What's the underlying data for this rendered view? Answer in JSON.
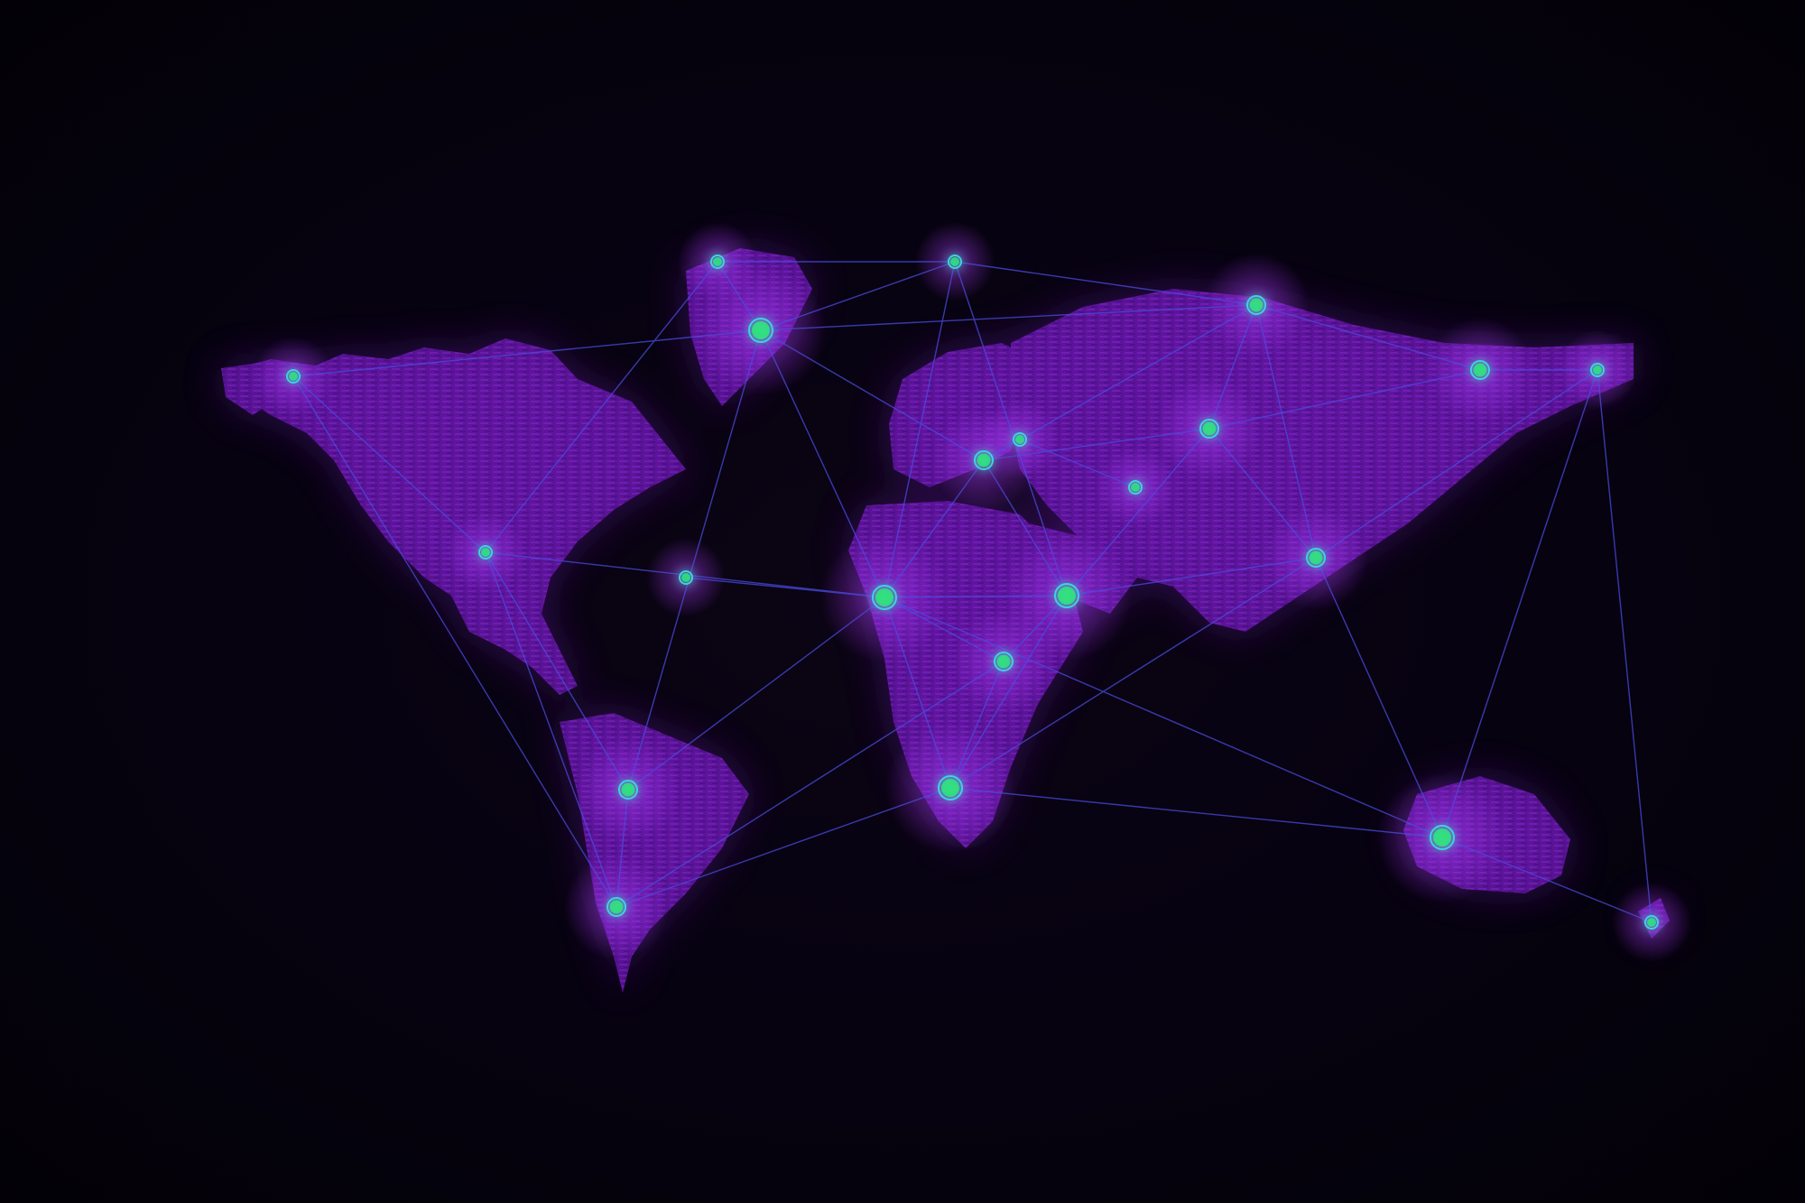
{
  "image": {
    "subject": "world-map-network",
    "colors": {
      "background": "#040108",
      "land": "#7a1fc4",
      "land_glow": "#9b2cf0",
      "link": "#4a4ce0",
      "node_core": "#2ee87a",
      "node_ring": "#3fd0e0"
    }
  },
  "nodes": [
    {
      "id": "alaska",
      "size": 1
    },
    {
      "id": "greenland-west",
      "size": 1
    },
    {
      "id": "greenland",
      "size": 3
    },
    {
      "id": "svalbard",
      "size": 1
    },
    {
      "id": "north-siberia",
      "size": 2
    },
    {
      "id": "far-east-russia-a",
      "size": 2
    },
    {
      "id": "far-east-russia-b",
      "size": 1
    },
    {
      "id": "central-russia",
      "size": 2
    },
    {
      "id": "europe",
      "size": 2
    },
    {
      "id": "europe-east",
      "size": 1
    },
    {
      "id": "central-asia",
      "size": 1
    },
    {
      "id": "north-america",
      "size": 1
    },
    {
      "id": "atlantic",
      "size": 1
    },
    {
      "id": "west-africa",
      "size": 3
    },
    {
      "id": "arabia",
      "size": 3
    },
    {
      "id": "east-asia",
      "size": 2
    },
    {
      "id": "central-africa",
      "size": 2
    },
    {
      "id": "south-america-north",
      "size": 2
    },
    {
      "id": "south-america-south",
      "size": 2
    },
    {
      "id": "southern-africa",
      "size": 3
    },
    {
      "id": "australia",
      "size": 3
    },
    {
      "id": "new-zealand",
      "size": 1
    }
  ],
  "links": [
    [
      "alaska",
      "greenland"
    ],
    [
      "alaska",
      "north-america"
    ],
    [
      "alaska",
      "south-america-south"
    ],
    [
      "greenland-west",
      "svalbard"
    ],
    [
      "greenland-west",
      "north-america"
    ],
    [
      "greenland-west",
      "greenland"
    ],
    [
      "svalbard",
      "north-siberia"
    ],
    [
      "svalbard",
      "greenland"
    ],
    [
      "svalbard",
      "west-africa"
    ],
    [
      "svalbard",
      "arabia"
    ],
    [
      "greenland",
      "north-siberia"
    ],
    [
      "greenland",
      "europe"
    ],
    [
      "greenland",
      "west-africa"
    ],
    [
      "greenland",
      "south-america-north"
    ],
    [
      "north-siberia",
      "central-russia"
    ],
    [
      "north-siberia",
      "east-asia"
    ],
    [
      "north-siberia",
      "far-east-russia-a"
    ],
    [
      "north-siberia",
      "europe"
    ],
    [
      "far-east-russia-a",
      "central-russia"
    ],
    [
      "far-east-russia-a",
      "far-east-russia-b"
    ],
    [
      "far-east-russia-b",
      "east-asia"
    ],
    [
      "far-east-russia-b",
      "australia"
    ],
    [
      "far-east-russia-b",
      "new-zealand"
    ],
    [
      "central-russia",
      "europe"
    ],
    [
      "central-russia",
      "arabia"
    ],
    [
      "central-russia",
      "east-asia"
    ],
    [
      "europe",
      "west-africa"
    ],
    [
      "europe",
      "arabia"
    ],
    [
      "europe-east",
      "central-asia"
    ],
    [
      "europe",
      "europe-east"
    ],
    [
      "north-america",
      "west-africa"
    ],
    [
      "north-america",
      "south-america-north"
    ],
    [
      "north-america",
      "south-america-south"
    ],
    [
      "west-africa",
      "arabia"
    ],
    [
      "west-africa",
      "south-america-north"
    ],
    [
      "west-africa",
      "southern-africa"
    ],
    [
      "west-africa",
      "central-africa"
    ],
    [
      "west-africa",
      "australia"
    ],
    [
      "arabia",
      "east-asia"
    ],
    [
      "arabia",
      "southern-africa"
    ],
    [
      "arabia",
      "central-africa"
    ],
    [
      "east-asia",
      "australia"
    ],
    [
      "east-asia",
      "southern-africa"
    ],
    [
      "central-africa",
      "south-america-south"
    ],
    [
      "central-africa",
      "southern-africa"
    ],
    [
      "south-america-north",
      "south-america-south"
    ],
    [
      "southern-africa",
      "australia"
    ],
    [
      "southern-africa",
      "south-america-south"
    ],
    [
      "australia",
      "new-zealand"
    ],
    [
      "atlantic",
      "west-africa"
    ]
  ]
}
